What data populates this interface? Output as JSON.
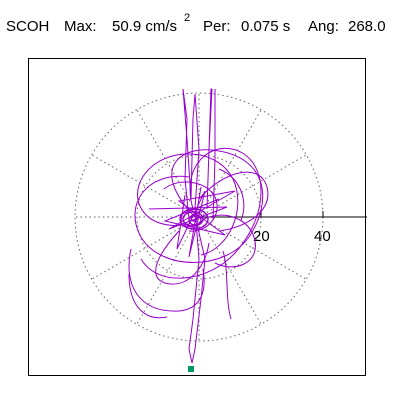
{
  "header": {
    "station": "SCOH",
    "max_label": "Max:",
    "max_value": "50.9 cm/s",
    "max_exp": "2",
    "per_label": "Per:",
    "per_value": "0.075 s",
    "ang_label": "Ang:",
    "ang_value": "268.0"
  },
  "axis": {
    "tick_20": "20",
    "tick_40": "40"
  },
  "colors": {
    "trace": "#9900cc",
    "marker": "#009966",
    "grid": "#666666"
  }
}
